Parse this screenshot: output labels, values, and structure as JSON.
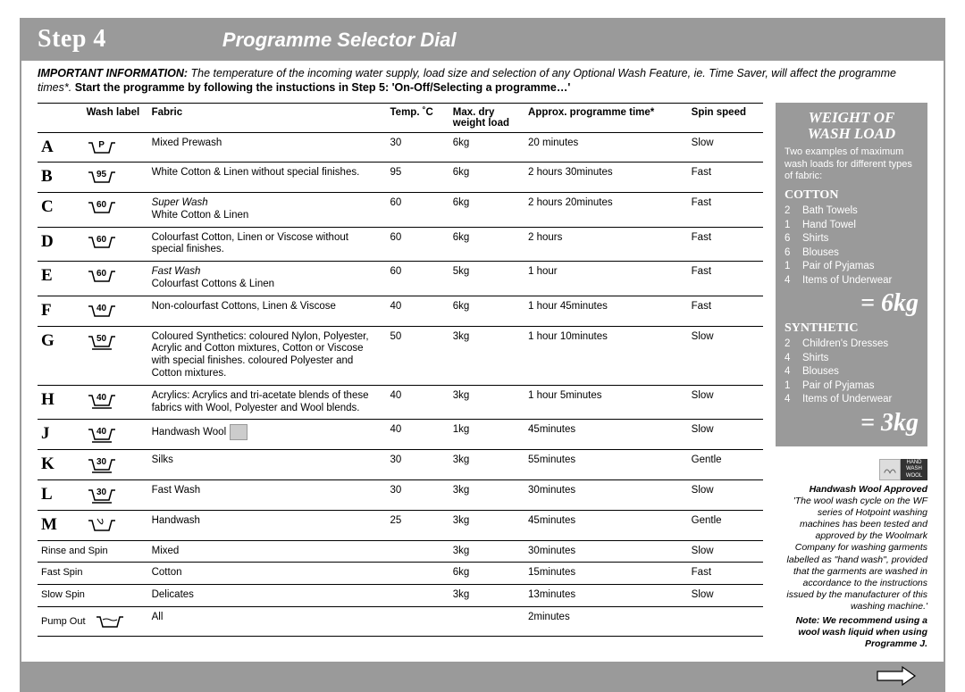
{
  "header": {
    "step": "Step 4",
    "title": "Programme Selector Dial"
  },
  "info": {
    "label": "IMPORTANT INFORMATION:",
    "line1": "The temperature of the incoming water supply, load size and selection of any Optional Wash Feature, ie. Time Saver, will affect the programme times*.",
    "line2": "Start the programme by following the instuctions in Step 5: 'On-Off/Selecting a programme…'"
  },
  "columns": {
    "wash_label": "Wash label",
    "fabric": "Fabric",
    "temp": "Temp. ˚C",
    "load": "Max. dry weight load",
    "time": "Approx. programme time*",
    "spin": "Spin speed"
  },
  "rows": [
    {
      "letter": "A",
      "sym": "P",
      "fabric": "Mixed Prewash",
      "temp": "30",
      "load": "6kg",
      "time": "20 minutes",
      "spin": "Slow"
    },
    {
      "letter": "B",
      "sym": "95",
      "fabric": "White Cotton & Linen without special finishes.",
      "temp": "95",
      "load": "6kg",
      "time": "2 hours 30minutes",
      "spin": "Fast"
    },
    {
      "letter": "C",
      "sym": "60",
      "fabric_pre": "Super Wash",
      "fabric": "White Cotton & Linen",
      "temp": "60",
      "load": "6kg",
      "time": "2 hours 20minutes",
      "spin": "Fast"
    },
    {
      "letter": "D",
      "sym": "60",
      "fabric": "Colourfast Cotton, Linen or Viscose without special finishes.",
      "temp": "60",
      "load": "6kg",
      "time": "2 hours",
      "spin": "Fast"
    },
    {
      "letter": "E",
      "sym": "60",
      "fabric_pre": "Fast Wash",
      "fabric": "Colourfast Cottons & Linen",
      "temp": "60",
      "load": "5kg",
      "time": "1 hour",
      "spin": "Fast"
    },
    {
      "letter": "F",
      "sym": "40",
      "fabric": "Non-colourfast Cottons, Linen & Viscose",
      "temp": "40",
      "load": "6kg",
      "time": "1 hour 45minutes",
      "spin": "Fast"
    },
    {
      "letter": "G",
      "sym": "50",
      "fabric": "Coloured Synthetics: coloured Nylon, Polyester, Acrylic and Cotton mixtures, Cotton or Viscose with special finishes. coloured Polyester and Cotton mixtures.",
      "temp": "50",
      "load": "3kg",
      "time": "1 hour 10minutes",
      "spin": "Slow",
      "underline": true
    },
    {
      "letter": "H",
      "sym": "40",
      "fabric": "Acrylics: Acrylics and tri-acetate blends of these fabrics with Wool, Polyester and Wool blends.",
      "temp": "40",
      "load": "3kg",
      "time": "1 hour  5minutes",
      "spin": "Slow",
      "underline": true
    },
    {
      "letter": "J",
      "sym": "40",
      "fabric": "Handwash Wool",
      "temp": "40",
      "load": "1kg",
      "time": "45minutes",
      "spin": "Slow",
      "underline": true,
      "woolmark": true
    },
    {
      "letter": "K",
      "sym": "30",
      "fabric": "Silks",
      "temp": "30",
      "load": "3kg",
      "time": "55minutes",
      "spin": "Gentle",
      "underline": true
    },
    {
      "letter": "L",
      "sym": "30",
      "fabric": "Fast Wash",
      "temp": "30",
      "load": "3kg",
      "time": "30minutes",
      "spin": "Slow",
      "underline": true
    },
    {
      "letter": "M",
      "sym": "",
      "fabric": "Handwash",
      "temp": "25",
      "load": "3kg",
      "time": "45minutes",
      "spin": "Gentle",
      "hand": true
    },
    {
      "letter": "Rinse and Spin",
      "plain": true,
      "fabric": "Mixed",
      "temp": "",
      "load": "3kg",
      "time": "30minutes",
      "spin": "Slow"
    },
    {
      "letter": "Fast Spin",
      "plain": true,
      "fabric": "Cotton",
      "temp": "",
      "load": "6kg",
      "time": "15minutes",
      "spin": "Fast"
    },
    {
      "letter": "Slow Spin",
      "plain": true,
      "fabric": "Delicates",
      "temp": "",
      "load": "3kg",
      "time": "13minutes",
      "spin": "Slow"
    },
    {
      "letter": "Pump Out",
      "plain": true,
      "fabric": "All",
      "temp": "",
      "load": "",
      "time": "2minutes",
      "spin": "",
      "tub": true
    }
  ],
  "weight": {
    "title1": "WEIGHT OF",
    "title2": "WASH LOAD",
    "sub": "Two examples of maximum wash loads for different types of fabric:",
    "cotton": {
      "label": "COTTON",
      "items": [
        [
          "2",
          "Bath Towels"
        ],
        [
          "1",
          "Hand Towel"
        ],
        [
          "6",
          "Shirts"
        ],
        [
          "6",
          "Blouses"
        ],
        [
          "1",
          "Pair of Pyjamas"
        ],
        [
          "4",
          "Items of Underwear"
        ]
      ],
      "total": "= 6kg"
    },
    "synthetic": {
      "label": "SYNTHETIC",
      "items": [
        [
          "2",
          "Children's Dresses"
        ],
        [
          "4",
          "Shirts"
        ],
        [
          "4",
          "Blouses"
        ],
        [
          "1",
          "Pair of Pyjamas"
        ],
        [
          "4",
          "Items of Underwear"
        ]
      ],
      "total": "= 3kg"
    }
  },
  "approved": {
    "title": "Handwash Wool Approved",
    "body": "'The wool wash cycle on the WF series of Hotpoint washing machines has been tested and approved by the Woolmark Company for washing garments labelled as \"hand wash\", provided that the garments are washed in accordance to the instructions issued by the manufacturer of this washing machine.'",
    "note": "Note: We recommend using a wool wash liquid when using Programme J."
  },
  "colors": {
    "bar": "#9a9a9a",
    "text": "#000000",
    "white": "#ffffff"
  }
}
